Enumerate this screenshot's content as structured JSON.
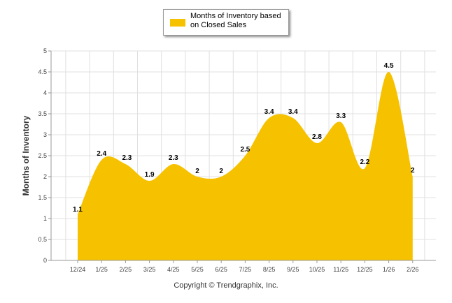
{
  "chart_data": {
    "type": "area",
    "title": "",
    "ylabel": "Months of Inventory",
    "xlabel": "",
    "ylim": [
      0,
      5
    ],
    "yticks": [
      "0",
      "0.5",
      "1",
      "1.5",
      "2",
      "2.5",
      "3",
      "3.5",
      "4",
      "4.5",
      "5"
    ],
    "categories": [
      "12/24",
      "1/25",
      "2/25",
      "3/25",
      "4/25",
      "5/25",
      "6/25",
      "7/25",
      "8/25",
      "9/25",
      "10/25",
      "11/25",
      "12/25",
      "1/26",
      "2/26"
    ],
    "series": [
      {
        "name": "Months of Inventory based on Closed Sales",
        "values": [
          1.1,
          2.4,
          2.3,
          1.9,
          2.3,
          2,
          2,
          2.5,
          3.4,
          3.4,
          2.8,
          3.3,
          2.2,
          4.5,
          2
        ],
        "labels": [
          "1.1",
          "2.4",
          "2.3",
          "1.9",
          "2.3",
          "2",
          "2",
          "2.5",
          "3.4",
          "3.4",
          "2.8",
          "3.3",
          "2.2",
          "4.5",
          "2"
        ]
      }
    ],
    "grid": true,
    "legend_position": "top-center"
  },
  "legend": {
    "label": "Months of Inventory based on Closed Sales"
  },
  "footer": {
    "copyright": "Copyright © Trendgraphix, Inc."
  },
  "colors": {
    "area": "#F6C200",
    "grid": "#e0e0e0",
    "axis": "#999999"
  }
}
